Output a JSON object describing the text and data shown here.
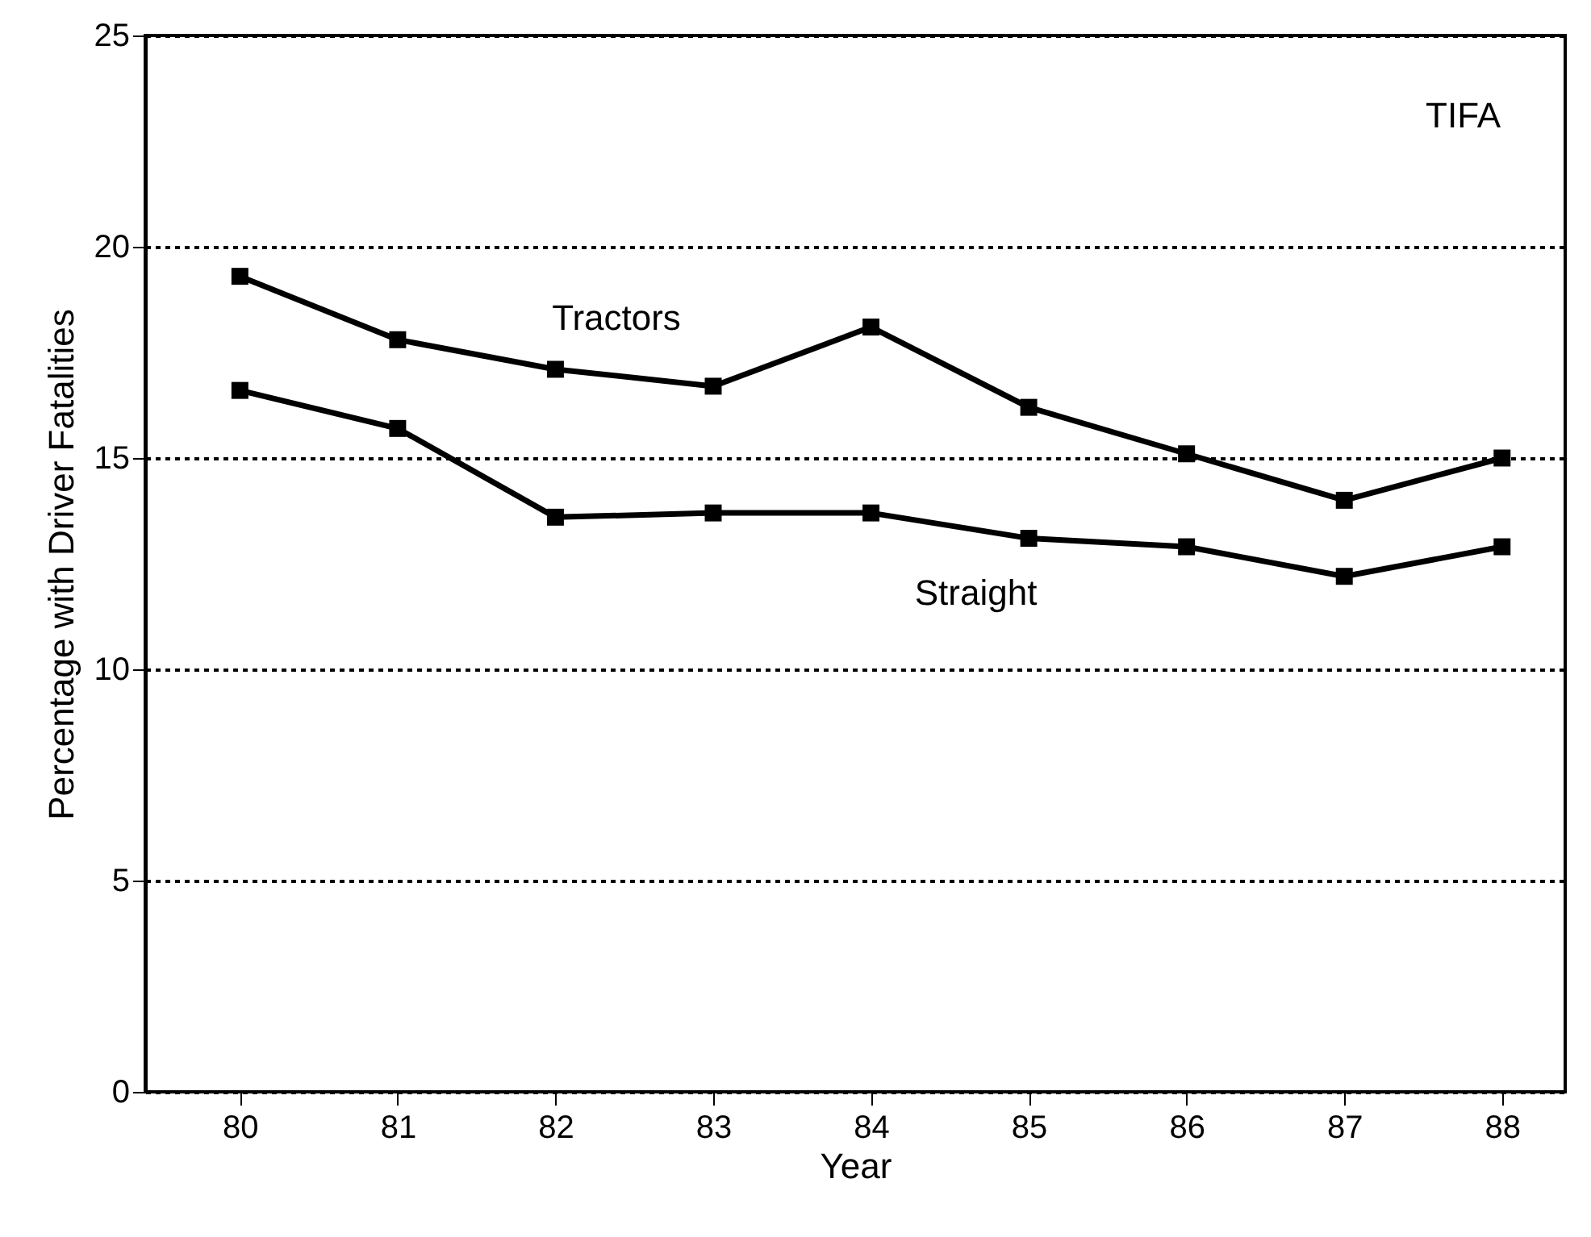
{
  "chart_data": {
    "type": "line",
    "xlabel": "Year",
    "ylabel": "Percentage with Driver Fatalities",
    "x": [
      80,
      81,
      82,
      83,
      84,
      85,
      86,
      87,
      88
    ],
    "series": [
      {
        "name": "Tractors",
        "color": "#000000",
        "values": [
          19.3,
          17.8,
          17.1,
          16.7,
          18.1,
          16.2,
          15.1,
          14.0,
          15.0
        ]
      },
      {
        "name": "Straight",
        "color": "#000000",
        "values": [
          16.6,
          15.7,
          13.6,
          13.7,
          13.7,
          13.1,
          12.9,
          12.2,
          12.9
        ]
      }
    ],
    "xlim": [
      79.4,
      88.4
    ],
    "xticks": [
      80,
      81,
      82,
      83,
      84,
      85,
      86,
      87,
      88
    ],
    "ylim": [
      0,
      25
    ],
    "yticks": [
      0,
      5,
      10,
      15,
      20,
      25
    ],
    "grid": "y",
    "marker": "square",
    "line_style": "solid",
    "legend": false,
    "annotations": [
      "TIFA"
    ]
  }
}
